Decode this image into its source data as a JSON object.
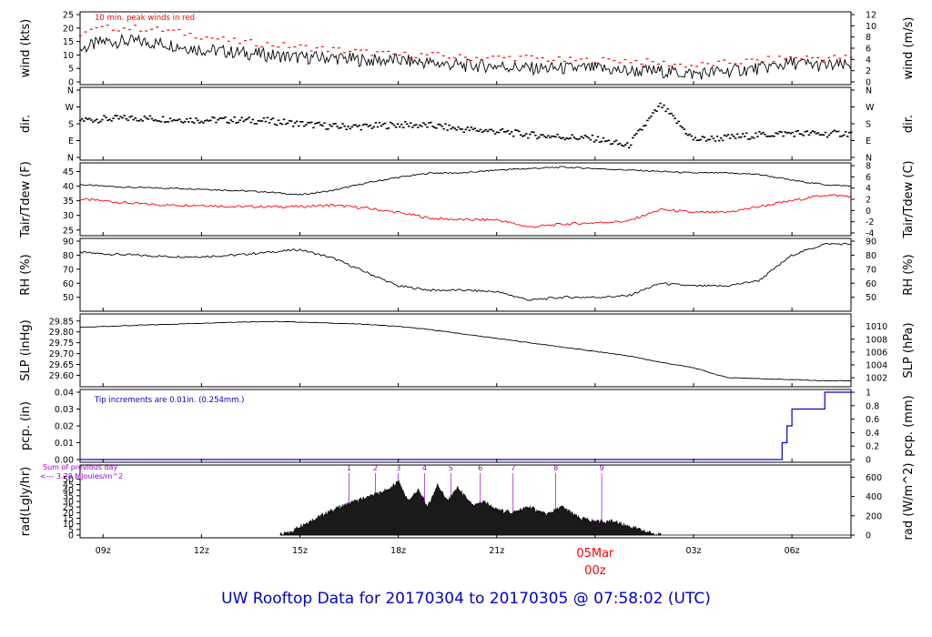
{
  "footer": {
    "prefix": "UW Rooftop Data for",
    "from": "20170304",
    "to_word": "to",
    "to": "20170305",
    "at": "@ 07:58:02",
    "tz": "(UTC)"
  },
  "colors": {
    "frame": "#000000",
    "peak_wind": "#ff0000",
    "dewpoint": "#ff0000",
    "precip": "#0000cc",
    "note_blue": "#0000cc",
    "radiation_labels": "#9900cc",
    "date_label": "#ff0000",
    "footer": "#0000cc"
  },
  "chart_data": [
    {
      "type": "line",
      "ylabel_left": "wind (kts)",
      "ylabel_right": "wind (m/s)",
      "ylim": [
        0,
        25
      ],
      "yticks_left": [
        "0",
        "5",
        "10",
        "15",
        "20",
        "25"
      ],
      "yticks_right": [
        "0",
        "2",
        "4",
        "6",
        "8",
        "10",
        "12"
      ],
      "annotation": "10 min. peak winds in red",
      "x": [
        8.3,
        9,
        10,
        11,
        12,
        13,
        14,
        15,
        16,
        17,
        18,
        19,
        20,
        21,
        22,
        23,
        24,
        25,
        26,
        27,
        28,
        29,
        30,
        31,
        31.8
      ],
      "series": [
        {
          "values": [
            12,
            15,
            15,
            14,
            12,
            11,
            10,
            9,
            9,
            8,
            8,
            7,
            6,
            6,
            5,
            5,
            5,
            4,
            4,
            3,
            4,
            5,
            7,
            6,
            6
          ]
        },
        {
          "values": [
            18,
            20,
            20,
            19,
            17,
            15,
            14,
            13,
            12,
            11,
            10,
            10,
            9,
            9,
            9,
            8,
            8,
            8,
            7,
            6,
            7,
            8,
            9,
            9,
            9
          ]
        }
      ]
    },
    {
      "type": "scatter",
      "ylabel_left": "dir.",
      "ylabel_right": "dir.",
      "yticks_left": [
        "N",
        "E",
        "S",
        "W",
        "N"
      ],
      "yticks_right": [
        "N",
        "E",
        "S",
        "W",
        "N"
      ],
      "x": [
        8.3,
        9,
        10,
        11,
        12,
        13,
        14,
        15,
        16,
        17,
        18,
        19,
        20,
        21,
        22,
        23,
        24,
        25,
        26,
        27,
        28,
        29,
        30,
        31,
        31.8
      ],
      "series": [
        {
          "values": [
            200,
            205,
            210,
            205,
            200,
            200,
            195,
            180,
            165,
            165,
            175,
            170,
            150,
            140,
            120,
            110,
            100,
            60,
            280,
            95,
            105,
            120,
            130,
            125,
            130
          ]
        }
      ]
    },
    {
      "type": "line",
      "ylabel_left": "Tair/Tdew (F)",
      "ylabel_right": "Tair/Tdew (C)",
      "ylim": [
        24,
        47
      ],
      "yticks_left": [
        "25",
        "30",
        "35",
        "40",
        "45"
      ],
      "yticks_right": [
        "-4",
        "-2",
        "0",
        "2",
        "4",
        "6",
        "8"
      ],
      "x": [
        8.3,
        9,
        10,
        11,
        12,
        13,
        14,
        15,
        16,
        17,
        18,
        19,
        20,
        21,
        22,
        23,
        24,
        25,
        26,
        27,
        28,
        29,
        30,
        31,
        31.8
      ],
      "series": [
        {
          "values": [
            40.5,
            40,
            39.5,
            39.3,
            39,
            38.5,
            38,
            37,
            38.5,
            41,
            43,
            44.5,
            44.5,
            45.5,
            46,
            46.5,
            46,
            45.5,
            45,
            44.5,
            44.5,
            44,
            42,
            40.5,
            40
          ]
        },
        {
          "values": [
            35.5,
            35,
            34,
            33.5,
            33.5,
            33,
            33,
            33,
            33.5,
            32.5,
            31,
            29,
            28.5,
            28.5,
            26,
            27,
            27.5,
            28,
            32,
            31,
            31,
            33,
            35,
            37,
            36.5
          ]
        }
      ]
    },
    {
      "type": "line",
      "ylabel_left": "RH (%)",
      "ylabel_right": "RH (%)",
      "ylim": [
        42,
        90
      ],
      "yticks_left": [
        "50",
        "60",
        "70",
        "80",
        "90"
      ],
      "yticks_right": [
        "50",
        "60",
        "70",
        "80",
        "90"
      ],
      "x": [
        8.3,
        9,
        10,
        11,
        12,
        13,
        14,
        15,
        16,
        17,
        18,
        19,
        20,
        21,
        22,
        23,
        24,
        25,
        26,
        27,
        28,
        29,
        30,
        31,
        31.8
      ],
      "series": [
        {
          "values": [
            82,
            81,
            80,
            79,
            79,
            80,
            82,
            84,
            78,
            68,
            58,
            55,
            55,
            54,
            48,
            50,
            50,
            51,
            60,
            58,
            58,
            62,
            80,
            88,
            88
          ]
        }
      ]
    },
    {
      "type": "line",
      "ylabel_left": "SLP (inHg)",
      "ylabel_right": "SLP (hPa)",
      "ylim": [
        29.56,
        29.87
      ],
      "yticks_left": [
        "29.60",
        "29.65",
        "29.70",
        "29.75",
        "29.80",
        "29.85"
      ],
      "yticks_right": [
        "1002",
        "1004",
        "1006",
        "1008",
        "1010"
      ],
      "x": [
        8.3,
        9,
        10,
        11,
        12,
        13,
        14,
        15,
        16,
        17,
        18,
        19,
        20,
        21,
        22,
        23,
        24,
        25,
        26,
        27,
        28,
        29,
        30,
        31,
        31.8
      ],
      "series": [
        {
          "values": [
            29.82,
            29.825,
            29.83,
            29.835,
            29.84,
            29.845,
            29.848,
            29.845,
            29.84,
            29.835,
            29.825,
            29.81,
            29.79,
            29.77,
            29.75,
            29.73,
            29.71,
            29.69,
            29.66,
            29.635,
            29.59,
            29.585,
            29.58,
            29.575,
            29.575
          ]
        }
      ]
    },
    {
      "type": "line",
      "ylabel_left": "pcp. (in)",
      "ylabel_right": "pcp. (mm)",
      "ylim": [
        0,
        0.04
      ],
      "yticks_left": [
        "0.00",
        "0.01",
        "0.02",
        "0.03",
        "0.04"
      ],
      "yticks_right": [
        "0",
        "0.2",
        "0.4",
        "0.6",
        "0.8",
        "1"
      ],
      "annotation": "Tip increments are 0.01in. (0.254mm.)",
      "x": [
        8.3,
        29.7,
        29.7,
        29.85,
        29.85,
        30,
        30,
        31,
        31,
        31.8
      ],
      "series": [
        {
          "values": [
            0,
            0,
            0.01,
            0.01,
            0.02,
            0.02,
            0.03,
            0.03,
            0.04,
            0.04
          ]
        }
      ]
    },
    {
      "type": "area",
      "ylabel_left": "rad(Lgly/hr)",
      "ylabel_right": "rad (W/m^2)",
      "ylim": [
        0,
        60
      ],
      "yticks_left": [
        "0",
        "5",
        "10",
        "15",
        "20",
        "25",
        "30",
        "35",
        "40",
        "45",
        "50"
      ],
      "yticks_right": [
        "0",
        "200",
        "400",
        "600"
      ],
      "sum_note_1": "Sum of previous day",
      "sum_note_2": "<--- 3.78 MJoules/m^2",
      "hour_markers": [
        "1",
        "2",
        "3",
        "4",
        "5",
        "6",
        "7",
        "8",
        "9"
      ],
      "x": [
        14.4,
        14.7,
        15,
        15.5,
        16,
        16.5,
        17,
        17.5,
        17.8,
        18,
        18.3,
        18.6,
        18.9,
        19.2,
        19.5,
        19.8,
        20,
        20.3,
        20.6,
        21,
        21.5,
        22,
        22.5,
        23,
        23.5,
        24,
        24.5,
        25,
        25.5,
        26
      ],
      "series": [
        {
          "values": [
            0,
            2,
            8,
            15,
            22,
            28,
            33,
            38,
            42,
            48,
            30,
            40,
            25,
            45,
            30,
            42,
            35,
            25,
            30,
            22,
            20,
            25,
            18,
            25,
            15,
            12,
            12,
            8,
            3,
            0
          ]
        }
      ]
    }
  ],
  "x_axis": {
    "tick_labels": [
      "09z",
      "12z",
      "15z",
      "18z",
      "21z",
      "03z",
      "06z"
    ],
    "date_label": "05Mar",
    "date_time": "00z"
  }
}
